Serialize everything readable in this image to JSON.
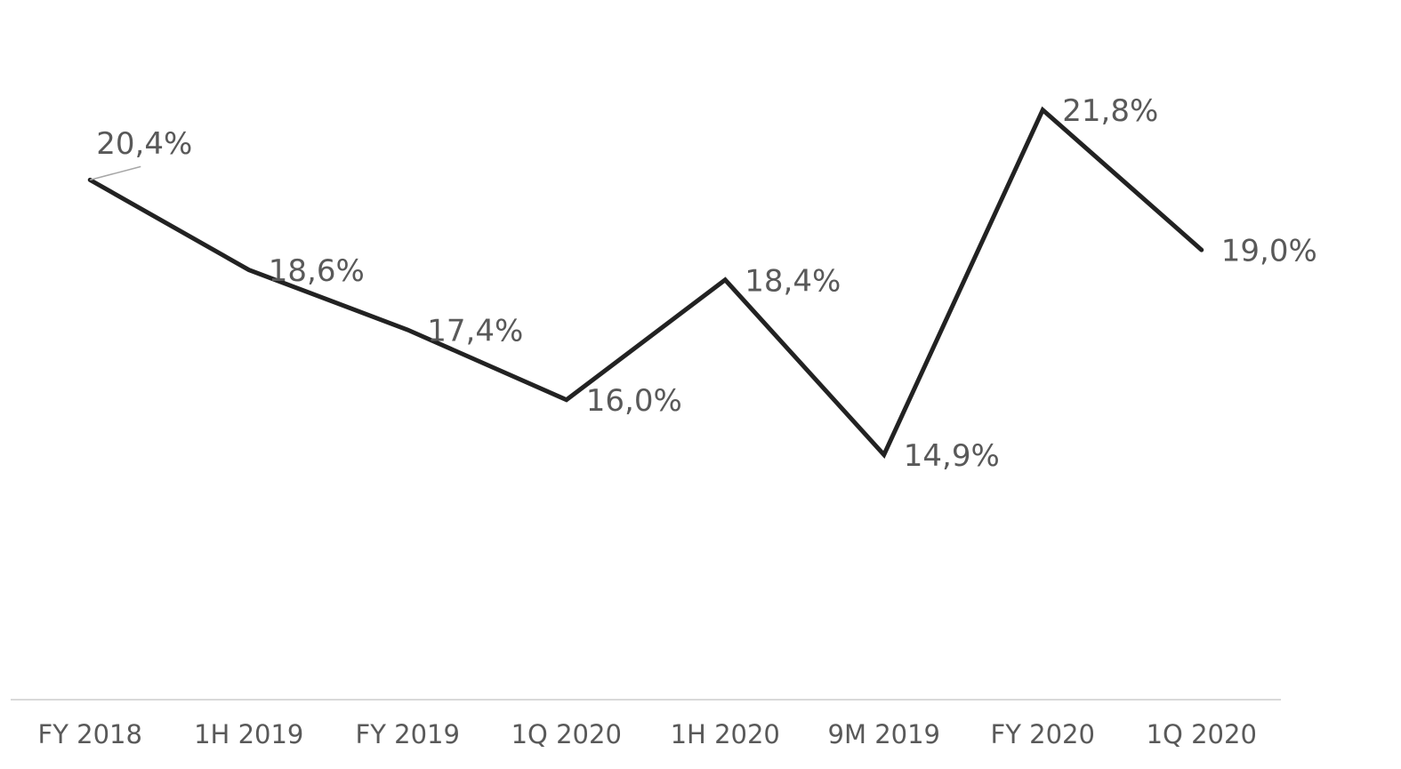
{
  "chart_data": {
    "type": "line",
    "categories": [
      "FY 2018",
      "1H 2019",
      "FY 2019",
      "1Q 2020",
      "1H 2020",
      "9M 2019",
      "FY 2020",
      "1Q 2020"
    ],
    "values": [
      20.4,
      18.6,
      17.4,
      16.0,
      18.4,
      14.9,
      21.8,
      19.0
    ],
    "value_labels": [
      "20,4%",
      "18,6%",
      "17,4%",
      "16,0%",
      "18,4%",
      "14,9%",
      "21,8%",
      "19,0%"
    ],
    "color": "#222222",
    "ylim": [
      10,
      24
    ]
  }
}
